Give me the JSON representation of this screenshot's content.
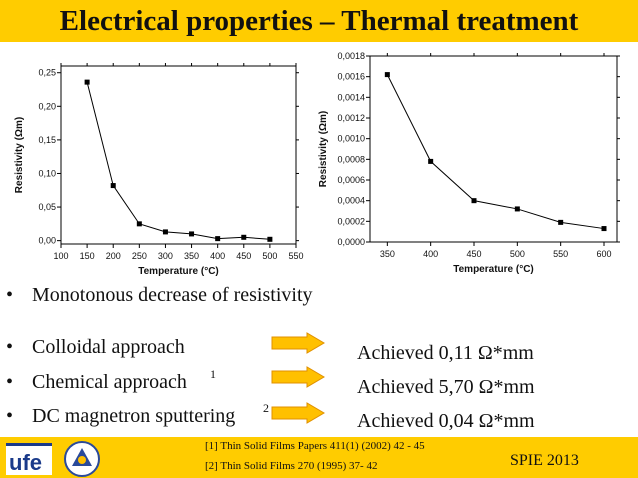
{
  "header": {
    "title": "Electrical properties – Thermal treatment"
  },
  "chart_data": [
    {
      "type": "line",
      "x": [
        150,
        200,
        250,
        300,
        350,
        400,
        450,
        500
      ],
      "y": [
        0.236,
        0.082,
        0.025,
        0.013,
        0.01,
        0.003,
        0.005,
        0.002
      ],
      "xlabel": "Temperature (°C)",
      "ylabel": "Resistivity (Ωm)",
      "xlim": [
        100,
        550
      ],
      "ylim": [
        -0.005,
        0.26
      ],
      "xticks": [
        100,
        150,
        200,
        250,
        300,
        350,
        400,
        450,
        500,
        550
      ],
      "yticks": [
        "0,00",
        "0,05",
        "0,10",
        "0,15",
        "0,20",
        "0,25"
      ],
      "ytick_values": [
        0.0,
        0.05,
        0.1,
        0.15,
        0.2,
        0.25
      ],
      "grid": false
    },
    {
      "type": "line",
      "x": [
        350,
        400,
        450,
        500,
        550,
        600
      ],
      "y": [
        0.00162,
        0.00078,
        0.0004,
        0.00032,
        0.00019,
        0.00013
      ],
      "xlabel": "Temperature (°C)",
      "ylabel": "Resistivity (Ωm)",
      "xlim": [
        330,
        615
      ],
      "ylim": [
        0.0,
        0.0018
      ],
      "xticks": [
        350,
        400,
        450,
        500,
        550,
        600
      ],
      "yticks": [
        "0,0000",
        "0,0002",
        "0,0004",
        "0,0006",
        "0,0008",
        "0,0010",
        "0,0012",
        "0,0014",
        "0,0016",
        "0,0018"
      ],
      "ytick_values": [
        0.0,
        0.0002,
        0.0004,
        0.0006,
        0.0008,
        0.001,
        0.0012,
        0.0014,
        0.0016,
        0.0018
      ],
      "grid": false
    }
  ],
  "bullets": {
    "dot": "•",
    "monotonous": "Monotonous decrease of resistivity",
    "colloidal": "Colloidal approach",
    "chemical": "Chemical approach",
    "chemical_ref": "1",
    "dc": "DC magnetron sputtering",
    "dc_ref": "2"
  },
  "results": {
    "colloidal": "Achieved   0,11 Ω*mm",
    "chemical": "Achieved   5,70 Ω*mm",
    "dc": "Achieved   0,04 Ω*mm"
  },
  "footer": {
    "ref1": "[1] Thin Solid Films Papers 411(1) (2002) 42 - 45",
    "ref2": "[2] Thin Solid Films 270 (1995) 37- 42",
    "conference": "SPIE 2013",
    "logo_text": "ufe"
  },
  "colors": {
    "accent": "#ffcc00",
    "arrow": "#ffc000",
    "arrow_border": "#e09000"
  }
}
